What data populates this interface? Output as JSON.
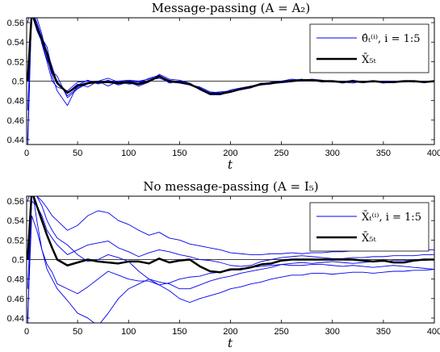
{
  "chart_data": [
    {
      "type": "line",
      "title": "Message-passing (A = A₂)",
      "xlabel": "t",
      "ylabel": "",
      "xlim": [
        0,
        400
      ],
      "ylim": [
        0.435,
        0.565
      ],
      "xticks": [
        "0",
        "50",
        "100",
        "150",
        "200",
        "250",
        "300",
        "350",
        "400"
      ],
      "yticks": [
        "0.44",
        "0.46",
        "0.48",
        "0.5",
        "0.52",
        "0.54",
        "0.56"
      ],
      "grid": false,
      "legend_position": "top-right",
      "reference_line": 0.5,
      "colors": {
        "agents": "#0000ee",
        "mean": "#000000"
      },
      "legend": [
        "θ̂ₜ⁽ⁱ⁾, i = 1:5",
        "X̄₅ₜ"
      ],
      "x": [
        1,
        5,
        10,
        15,
        20,
        25,
        30,
        40,
        50,
        60,
        70,
        80,
        90,
        100,
        110,
        120,
        130,
        140,
        150,
        160,
        170,
        180,
        190,
        200,
        210,
        220,
        230,
        240,
        250,
        260,
        270,
        280,
        290,
        300,
        310,
        320,
        330,
        340,
        350,
        360,
        370,
        380,
        390,
        400
      ],
      "series": [
        {
          "values": [
            0.43,
            0.575,
            0.56,
            0.545,
            0.53,
            0.515,
            0.498,
            0.488,
            0.497,
            0.494,
            0.5,
            0.495,
            0.5,
            0.498,
            0.497,
            0.501,
            0.503,
            0.499,
            0.498,
            0.496,
            0.494,
            0.489,
            0.488,
            0.49,
            0.492,
            0.495,
            0.496,
            0.497,
            0.499,
            0.5,
            0.5,
            0.501,
            0.499,
            0.5,
            0.498,
            0.5,
            0.499,
            0.5,
            0.498,
            0.499,
            0.5,
            0.499,
            0.5,
            0.499
          ]
        },
        {
          "values": [
            0.56,
            0.578,
            0.565,
            0.548,
            0.525,
            0.505,
            0.49,
            0.475,
            0.496,
            0.501,
            0.497,
            0.5,
            0.496,
            0.499,
            0.495,
            0.499,
            0.507,
            0.502,
            0.501,
            0.498,
            0.491,
            0.486,
            0.486,
            0.489,
            0.492,
            0.494,
            0.496,
            0.499,
            0.5,
            0.501,
            0.501,
            0.501,
            0.5,
            0.499,
            0.5,
            0.499,
            0.5,
            0.499,
            0.5,
            0.5,
            0.5,
            0.499,
            0.5,
            0.5
          ]
        },
        {
          "values": [
            0.5,
            0.57,
            0.552,
            0.54,
            0.522,
            0.51,
            0.505,
            0.483,
            0.492,
            0.498,
            0.5,
            0.503,
            0.499,
            0.497,
            0.498,
            0.503,
            0.506,
            0.5,
            0.5,
            0.497,
            0.493,
            0.487,
            0.487,
            0.491,
            0.493,
            0.495,
            0.497,
            0.498,
            0.5,
            0.502,
            0.501,
            0.502,
            0.501,
            0.499,
            0.499,
            0.498,
            0.5,
            0.5,
            0.499,
            0.5,
            0.5,
            0.5,
            0.499,
            0.5
          ]
        },
        {
          "values": [
            0.47,
            0.568,
            0.56,
            0.538,
            0.52,
            0.5,
            0.494,
            0.49,
            0.499,
            0.5,
            0.498,
            0.501,
            0.497,
            0.5,
            0.499,
            0.5,
            0.504,
            0.501,
            0.499,
            0.496,
            0.492,
            0.488,
            0.489,
            0.49,
            0.492,
            0.494,
            0.498,
            0.497,
            0.5,
            0.501,
            0.502,
            0.5,
            0.5,
            0.5,
            0.499,
            0.501,
            0.499,
            0.5,
            0.499,
            0.499,
            0.5,
            0.5,
            0.5,
            0.5
          ]
        },
        {
          "values": [
            0.44,
            0.575,
            0.555,
            0.544,
            0.535,
            0.512,
            0.5,
            0.485,
            0.493,
            0.497,
            0.499,
            0.499,
            0.5,
            0.501,
            0.5,
            0.502,
            0.505,
            0.498,
            0.5,
            0.497,
            0.493,
            0.488,
            0.487,
            0.489,
            0.491,
            0.493,
            0.497,
            0.498,
            0.499,
            0.5,
            0.501,
            0.501,
            0.5,
            0.5,
            0.5,
            0.499,
            0.499,
            0.499,
            0.5,
            0.499,
            0.499,
            0.5,
            0.499,
            0.5
          ]
        },
        {
          "values": [
            0.5,
            0.57,
            0.555,
            0.543,
            0.528,
            0.51,
            0.498,
            0.488,
            0.495,
            0.498,
            0.499,
            0.499,
            0.498,
            0.499,
            0.497,
            0.5,
            0.505,
            0.5,
            0.499,
            0.497,
            0.492,
            0.487,
            0.487,
            0.489,
            0.492,
            0.494,
            0.497,
            0.498,
            0.499,
            0.5,
            0.501,
            0.501,
            0.5,
            0.5,
            0.499,
            0.5,
            0.499,
            0.5,
            0.499,
            0.499,
            0.5,
            0.5,
            0.499,
            0.5
          ]
        }
      ]
    },
    {
      "type": "line",
      "title": "No message-passing (A = I₅)",
      "xlabel": "t",
      "ylabel": "",
      "xlim": [
        0,
        400
      ],
      "ylim": [
        0.435,
        0.565
      ],
      "xticks": [
        "0",
        "50",
        "100",
        "150",
        "200",
        "250",
        "300",
        "350",
        "400"
      ],
      "yticks": [
        "0.44",
        "0.46",
        "0.48",
        "0.5",
        "0.52",
        "0.54",
        "0.56"
      ],
      "grid": false,
      "legend_position": "top-right",
      "reference_line": 0.5,
      "colors": {
        "agents": "#0000ee",
        "mean": "#000000"
      },
      "legend": [
        "X̄ₜ⁽ⁱ⁾, i = 1:5",
        "X̄₅ₜ"
      ],
      "x": [
        1,
        5,
        10,
        15,
        20,
        25,
        30,
        40,
        50,
        60,
        70,
        80,
        90,
        100,
        110,
        120,
        130,
        140,
        150,
        160,
        170,
        180,
        190,
        200,
        210,
        220,
        230,
        240,
        250,
        260,
        270,
        280,
        290,
        300,
        310,
        320,
        330,
        340,
        350,
        360,
        370,
        380,
        390,
        400
      ],
      "series": [
        {
          "values": [
            0.43,
            0.575,
            0.54,
            0.51,
            0.49,
            0.48,
            0.47,
            0.458,
            0.445,
            0.44,
            0.432,
            0.445,
            0.46,
            0.47,
            0.475,
            0.48,
            0.474,
            0.476,
            0.48,
            0.482,
            0.483,
            0.486,
            0.487,
            0.489,
            0.491,
            0.492,
            0.493,
            0.494,
            0.495,
            0.494,
            0.494,
            0.495,
            0.495,
            0.494,
            0.493,
            0.494,
            0.493,
            0.492,
            0.493,
            0.494,
            0.493,
            0.492,
            0.491,
            0.49
          ]
        },
        {
          "values": [
            0.56,
            0.575,
            0.565,
            0.555,
            0.54,
            0.53,
            0.522,
            0.515,
            0.505,
            0.498,
            0.5,
            0.505,
            0.502,
            0.498,
            0.488,
            0.48,
            0.477,
            0.475,
            0.47,
            0.47,
            0.474,
            0.478,
            0.481,
            0.483,
            0.486,
            0.488,
            0.49,
            0.492,
            0.495,
            0.496,
            0.497,
            0.496,
            0.497,
            0.498,
            0.497,
            0.496,
            0.497,
            0.498,
            0.498,
            0.499,
            0.499,
            0.5,
            0.499,
            0.5
          ]
        },
        {
          "values": [
            0.5,
            0.57,
            0.565,
            0.56,
            0.553,
            0.545,
            0.54,
            0.53,
            0.535,
            0.545,
            0.55,
            0.548,
            0.54,
            0.536,
            0.53,
            0.525,
            0.528,
            0.522,
            0.52,
            0.516,
            0.514,
            0.512,
            0.51,
            0.507,
            0.506,
            0.505,
            0.505,
            0.506,
            0.506,
            0.507,
            0.506,
            0.507,
            0.507,
            0.508,
            0.508,
            0.509,
            0.509,
            0.51,
            0.51,
            0.51,
            0.511,
            0.511,
            0.51,
            0.51
          ]
        },
        {
          "values": [
            0.47,
            0.56,
            0.555,
            0.545,
            0.53,
            0.522,
            0.515,
            0.505,
            0.51,
            0.515,
            0.517,
            0.519,
            0.512,
            0.508,
            0.503,
            0.507,
            0.51,
            0.508,
            0.505,
            0.503,
            0.5,
            0.499,
            0.497,
            0.494,
            0.493,
            0.494,
            0.498,
            0.5,
            0.502,
            0.503,
            0.504,
            0.503,
            0.502,
            0.501,
            0.501,
            0.502,
            0.502,
            0.503,
            0.503,
            0.504,
            0.504,
            0.504,
            0.505,
            0.505
          ]
        },
        {
          "values": [
            0.44,
            0.545,
            0.53,
            0.51,
            0.495,
            0.487,
            0.475,
            0.47,
            0.465,
            0.472,
            0.48,
            0.488,
            0.484,
            0.48,
            0.478,
            0.478,
            0.474,
            0.468,
            0.46,
            0.456,
            0.46,
            0.463,
            0.466,
            0.47,
            0.472,
            0.475,
            0.477,
            0.48,
            0.482,
            0.484,
            0.484,
            0.486,
            0.486,
            0.485,
            0.486,
            0.487,
            0.487,
            0.486,
            0.487,
            0.488,
            0.488,
            0.489,
            0.489,
            0.49
          ]
        },
        {
          "values": [
            0.5,
            0.57,
            0.555,
            0.54,
            0.525,
            0.512,
            0.5,
            0.494,
            0.497,
            0.5,
            0.498,
            0.497,
            0.496,
            0.498,
            0.498,
            0.496,
            0.501,
            0.497,
            0.499,
            0.5,
            0.493,
            0.488,
            0.487,
            0.49,
            0.49,
            0.492,
            0.495,
            0.496,
            0.499,
            0.5,
            0.5,
            0.5,
            0.5,
            0.5,
            0.5,
            0.5,
            0.499,
            0.498,
            0.499,
            0.497,
            0.497,
            0.499,
            0.5,
            0.5
          ]
        }
      ]
    }
  ]
}
